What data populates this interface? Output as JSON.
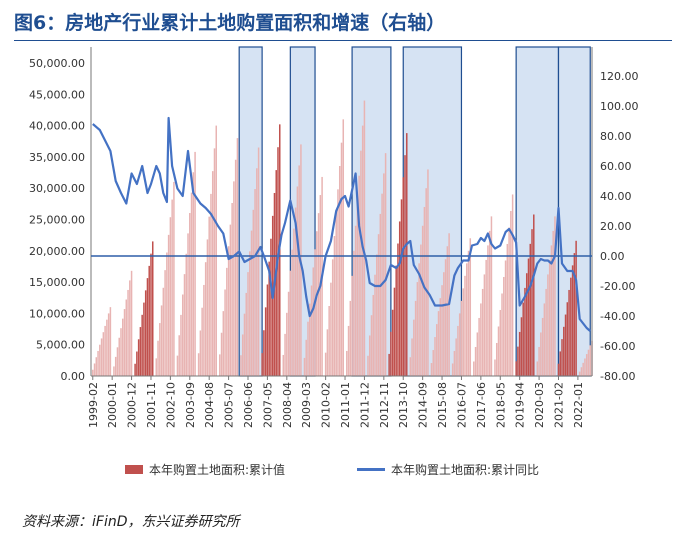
{
  "title": "图6：房地产行业累计土地购置面积和增速（右轴）",
  "source": "资料来源：iFinD，东兴证券研究所",
  "chart_data": {
    "type": "bar+line",
    "title": "图6：房地产行业累计土地购置面积和增速（右轴）",
    "y_left": {
      "min": 0,
      "max": 50000,
      "ticks": [
        "0.00",
        "5,000.00",
        "10,000.00",
        "15,000.00",
        "20,000.00",
        "25,000.00",
        "30,000.00",
        "35,000.00",
        "40,000.00",
        "45,000.00",
        "50,000.00"
      ]
    },
    "y_right": {
      "min": -80,
      "max": 130,
      "ticks": [
        "-80.00",
        "-60.00",
        "-40.00",
        "-20.00",
        "0.00",
        "20.00",
        "40.00",
        "60.00",
        "80.00",
        "100.00",
        "120.00"
      ]
    },
    "x_ticks": [
      "1999-02",
      "2000-01",
      "2000-12",
      "2001-11",
      "2002-10",
      "2003-09",
      "2004-08",
      "2005-07",
      "2006-06",
      "2007-05",
      "2008-04",
      "2009-03",
      "2010-02",
      "2011-01",
      "2011-12",
      "2012-11",
      "2013-10",
      "2014-09",
      "2015-08",
      "2016-07",
      "2017-06",
      "2018-05",
      "2019-04",
      "2020-03",
      "2021-02",
      "2022-01"
    ],
    "legend": [
      {
        "key": "bar",
        "label": "本年购置土地面积:累计值",
        "color": "#c0504d"
      },
      {
        "key": "line",
        "label": "本年购置土地面积:累计同比",
        "color": "#4472c4"
      }
    ],
    "annual_peak": [
      {
        "year": 1999,
        "value": 11000
      },
      {
        "year": 2000,
        "value": 16800
      },
      {
        "year": 2001,
        "value": 21500
      },
      {
        "year": 2002,
        "value": 31000
      },
      {
        "year": 2003,
        "value": 35800
      },
      {
        "year": 2004,
        "value": 40000
      },
      {
        "year": 2005,
        "value": 38000
      },
      {
        "year": 2006,
        "value": 36500
      },
      {
        "year": 2007,
        "value": 40200
      },
      {
        "year": 2008,
        "value": 37000
      },
      {
        "year": 2009,
        "value": 31800
      },
      {
        "year": 2010,
        "value": 41000
      },
      {
        "year": 2011,
        "value": 44000
      },
      {
        "year": 2012,
        "value": 35600
      },
      {
        "year": 2013,
        "value": 38800
      },
      {
        "year": 2014,
        "value": 33000
      },
      {
        "year": 2015,
        "value": 22800
      },
      {
        "year": 2016,
        "value": 22000
      },
      {
        "year": 2017,
        "value": 25500
      },
      {
        "year": 2018,
        "value": 29000
      },
      {
        "year": 2019,
        "value": 25800
      },
      {
        "year": 2020,
        "value": 25500
      },
      {
        "year": 2021,
        "value": 21600
      },
      {
        "year": 2022,
        "value": 5600
      }
    ],
    "highlighted_years": [
      2001,
      2007,
      2013,
      2019,
      2021
    ],
    "growth_points": [
      [
        "1999-02",
        88
      ],
      [
        "1999-06",
        84
      ],
      [
        "1999-12",
        70
      ],
      [
        "2000-03",
        50
      ],
      [
        "2000-06",
        42
      ],
      [
        "2000-09",
        35
      ],
      [
        "2000-12",
        55
      ],
      [
        "2001-03",
        48
      ],
      [
        "2001-06",
        60
      ],
      [
        "2001-09",
        42
      ],
      [
        "2001-11",
        48
      ],
      [
        "2002-02",
        60
      ],
      [
        "2002-04",
        55
      ],
      [
        "2002-06",
        42
      ],
      [
        "2002-08",
        36
      ],
      [
        "2002-09",
        92
      ],
      [
        "2002-11",
        60
      ],
      [
        "2003-02",
        45
      ],
      [
        "2003-05",
        40
      ],
      [
        "2003-08",
        70
      ],
      [
        "2003-11",
        42
      ],
      [
        "2004-03",
        35
      ],
      [
        "2004-06",
        32
      ],
      [
        "2004-09",
        28
      ],
      [
        "2005-01",
        20
      ],
      [
        "2005-04",
        15
      ],
      [
        "2005-07",
        -2
      ],
      [
        "2005-10",
        0
      ],
      [
        "2006-01",
        3
      ],
      [
        "2006-04",
        -4
      ],
      [
        "2006-07",
        -2
      ],
      [
        "2006-10",
        0
      ],
      [
        "2007-01",
        6
      ],
      [
        "2007-03",
        0
      ],
      [
        "2007-06",
        -10
      ],
      [
        "2007-08",
        -28
      ],
      [
        "2007-11",
        0
      ],
      [
        "2008-01",
        14
      ],
      [
        "2008-03",
        22
      ],
      [
        "2008-06",
        37
      ],
      [
        "2008-09",
        22
      ],
      [
        "2008-11",
        0
      ],
      [
        "2009-01",
        -10
      ],
      [
        "2009-03",
        -27
      ],
      [
        "2009-05",
        -40
      ],
      [
        "2009-07",
        -35
      ],
      [
        "2009-09",
        -26
      ],
      [
        "2009-11",
        -20
      ],
      [
        "2010-02",
        0
      ],
      [
        "2010-05",
        10
      ],
      [
        "2010-08",
        30
      ],
      [
        "2010-11",
        38
      ],
      [
        "2011-01",
        40
      ],
      [
        "2011-03",
        33
      ],
      [
        "2011-05",
        44
      ],
      [
        "2011-07",
        55
      ],
      [
        "2011-09",
        20
      ],
      [
        "2011-11",
        6
      ],
      [
        "2012-01",
        -3
      ],
      [
        "2012-03",
        -18
      ],
      [
        "2012-06",
        -20
      ],
      [
        "2012-09",
        -20
      ],
      [
        "2012-12",
        -16
      ],
      [
        "2013-03",
        -6
      ],
      [
        "2013-06",
        -8
      ],
      [
        "2013-08",
        -5
      ],
      [
        "2013-10",
        5
      ],
      [
        "2013-12",
        8
      ],
      [
        "2014-02",
        10
      ],
      [
        "2014-04",
        -6
      ],
      [
        "2014-07",
        -12
      ],
      [
        "2014-10",
        -21
      ],
      [
        "2015-01",
        -26
      ],
      [
        "2015-04",
        -33
      ],
      [
        "2015-08",
        -33
      ],
      [
        "2015-12",
        -32
      ],
      [
        "2016-03",
        -13
      ],
      [
        "2016-05",
        -8
      ],
      [
        "2016-08",
        -3
      ],
      [
        "2016-11",
        -3
      ],
      [
        "2017-01",
        7
      ],
      [
        "2017-04",
        8
      ],
      [
        "2017-06",
        12
      ],
      [
        "2017-08",
        10
      ],
      [
        "2017-10",
        15
      ],
      [
        "2017-12",
        8
      ],
      [
        "2018-02",
        5
      ],
      [
        "2018-05",
        7
      ],
      [
        "2018-08",
        16
      ],
      [
        "2018-10",
        18
      ],
      [
        "2018-12",
        14
      ],
      [
        "2019-02",
        9
      ],
      [
        "2019-04",
        -33
      ],
      [
        "2019-07",
        -27
      ],
      [
        "2019-10",
        -20
      ],
      [
        "2019-12",
        -13
      ],
      [
        "2020-02",
        -5
      ],
      [
        "2020-04",
        -2
      ],
      [
        "2020-06",
        -3
      ],
      [
        "2020-08",
        -3
      ],
      [
        "2020-10",
        -5
      ],
      [
        "2020-12",
        0
      ],
      [
        "2021-02",
        32
      ],
      [
        "2021-04",
        -5
      ],
      [
        "2021-07",
        -10
      ],
      [
        "2021-10",
        -10
      ],
      [
        "2021-12",
        -16
      ],
      [
        "2022-02",
        -42
      ],
      [
        "2022-04",
        -45
      ],
      [
        "2022-06",
        -48
      ],
      [
        "2022-08",
        -50
      ]
    ],
    "shaded_periods": [
      [
        "2006-01",
        "2007-02"
      ],
      [
        "2008-06",
        "2009-08"
      ],
      [
        "2011-05",
        "2013-03"
      ],
      [
        "2013-10",
        "2016-07"
      ],
      [
        "2019-02",
        "2021-02"
      ],
      [
        "2021-02",
        "2022-08"
      ]
    ],
    "grid": false
  }
}
